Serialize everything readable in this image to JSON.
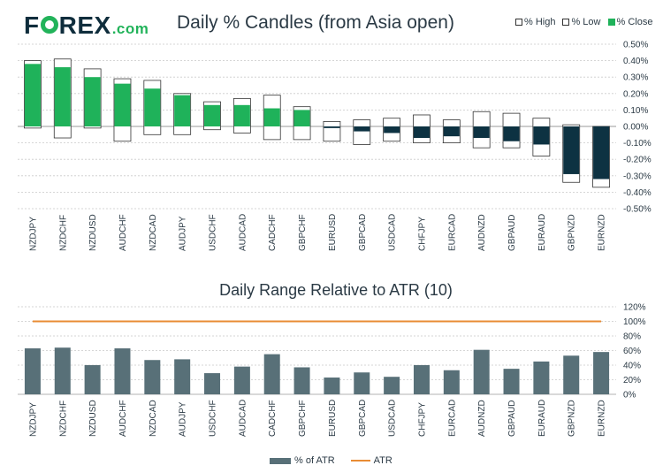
{
  "header": {
    "logo_prefix": "F",
    "logo_suffix": "REX",
    "logo_dotcom": ".com",
    "title": "Daily % Candles (from Asia open)"
  },
  "legend_top": {
    "high": "% High",
    "low": "% Low",
    "close": "% Close"
  },
  "legend_bottom": {
    "bar": "% of ATR",
    "line": "ATR"
  },
  "colors": {
    "bull": "#1fb25a",
    "bear": "#0d3242",
    "atr_bar": "#587078",
    "atr_line": "#e98c34",
    "grid": "#c9c9c9"
  },
  "chart_data": [
    {
      "type": "candle",
      "title": "Daily % Candles (from Asia open)",
      "categories": [
        "NZDJPY",
        "NZDCHF",
        "NZDUSD",
        "AUDCHF",
        "NZDCAD",
        "AUDJPY",
        "USDCHF",
        "AUDCAD",
        "CADCHF",
        "GBPCHF",
        "EURUSD",
        "GBPCAD",
        "USDCAD",
        "CHFJPY",
        "EURCAD",
        "AUDNZD",
        "GBPAUD",
        "EURAUD",
        "GBPNZD",
        "EURNZD"
      ],
      "high": [
        0.4,
        0.41,
        0.35,
        0.29,
        0.28,
        0.2,
        0.15,
        0.17,
        0.19,
        0.12,
        0.03,
        0.04,
        0.05,
        0.07,
        0.04,
        0.09,
        0.08,
        0.05,
        0.01,
        0.0
      ],
      "low": [
        -0.01,
        -0.07,
        -0.01,
        -0.09,
        -0.05,
        -0.05,
        -0.02,
        -0.04,
        -0.08,
        -0.08,
        -0.09,
        -0.11,
        -0.09,
        -0.1,
        -0.1,
        -0.13,
        -0.13,
        -0.18,
        -0.34,
        -0.37
      ],
      "close": [
        0.38,
        0.36,
        0.3,
        0.26,
        0.23,
        0.19,
        0.13,
        0.13,
        0.11,
        0.1,
        -0.01,
        -0.03,
        -0.04,
        -0.07,
        -0.06,
        -0.07,
        -0.09,
        -0.11,
        -0.29,
        -0.32
      ],
      "ylim": [
        -0.5,
        0.5
      ],
      "yticks": [
        0.5,
        0.4,
        0.3,
        0.2,
        0.1,
        0.0,
        -0.1,
        -0.2,
        -0.3,
        -0.4,
        -0.5
      ],
      "ytick_labels": [
        "0.50%",
        "0.40%",
        "0.30%",
        "0.20%",
        "0.10%",
        "0.00%",
        "-0.10%",
        "-0.20%",
        "-0.30%",
        "-0.40%",
        "-0.50%"
      ]
    },
    {
      "type": "bar",
      "title": "Daily Range Relative to ATR (10)",
      "categories": [
        "NZDJPY",
        "NZDCHF",
        "NZDUSD",
        "AUDCHF",
        "NZDCAD",
        "AUDJPY",
        "USDCHF",
        "AUDCAD",
        "CADCHF",
        "GBPCHF",
        "EURUSD",
        "GBPCAD",
        "USDCAD",
        "CHFJPY",
        "EURCAD",
        "AUDNZD",
        "GBPAUD",
        "EURAUD",
        "GBPNZD",
        "EURNZD"
      ],
      "series": [
        {
          "name": "% of ATR",
          "values": [
            63,
            64,
            40,
            63,
            47,
            48,
            29,
            38,
            55,
            37,
            23,
            30,
            24,
            40,
            33,
            61,
            35,
            45,
            53,
            58
          ]
        },
        {
          "name": "ATR",
          "values": [
            100,
            100,
            100,
            100,
            100,
            100,
            100,
            100,
            100,
            100,
            100,
            100,
            100,
            100,
            100,
            100,
            100,
            100,
            100,
            100
          ]
        }
      ],
      "ylim": [
        0,
        120
      ],
      "yticks": [
        120,
        100,
        80,
        60,
        40,
        20,
        0
      ],
      "ytick_labels": [
        "120%",
        "100%",
        "80%",
        "60%",
        "40%",
        "20%",
        "0%"
      ]
    }
  ]
}
